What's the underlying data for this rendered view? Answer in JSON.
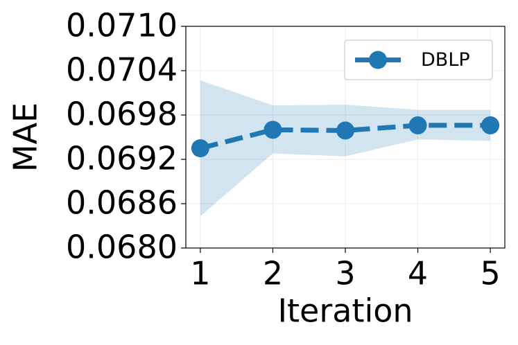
{
  "chart_data": {
    "type": "line",
    "x": [
      1,
      2,
      3,
      4,
      5
    ],
    "series": [
      {
        "name": "DBLP",
        "color": "#1f77b4",
        "values": [
          0.06935,
          0.0696,
          0.06959,
          0.06966,
          0.06966
        ],
        "lower": [
          0.06843,
          0.06928,
          0.06924,
          0.06947,
          0.06945
        ],
        "upper": [
          0.07027,
          0.06993,
          0.06994,
          0.06987,
          0.06987
        ]
      }
    ],
    "xlabel": "Iteration",
    "ylabel": "MAE",
    "xlim": [
      0.8,
      5.2
    ],
    "xticks": [
      1,
      2,
      3,
      4,
      5
    ],
    "ylim": [
      0.068,
      0.071
    ],
    "yticks": [
      {
        "value": 0.068,
        "label": "0.0680"
      },
      {
        "value": 0.0686,
        "label": "0.0686"
      },
      {
        "value": 0.0692,
        "label": "0.0692"
      },
      {
        "value": 0.0698,
        "label": "0.0698"
      },
      {
        "value": 0.0704,
        "label": "0.0704"
      },
      {
        "value": 0.071,
        "label": "0.0710"
      }
    ],
    "grid": true,
    "legend": "upper-right"
  }
}
